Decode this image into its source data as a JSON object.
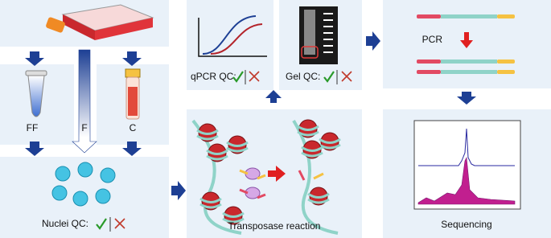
{
  "samples": {
    "fresh_frozen": "FF",
    "fresh": "F",
    "cryopreserved": "C"
  },
  "steps": {
    "nuclei_qc": "Nuclei QC:",
    "qpcr_qc": "qPCR QC:",
    "gel_qc": "Gel QC:",
    "pcr": "PCR",
    "transposase": "Transposase reaction",
    "sequencing": "Sequencing"
  }
}
